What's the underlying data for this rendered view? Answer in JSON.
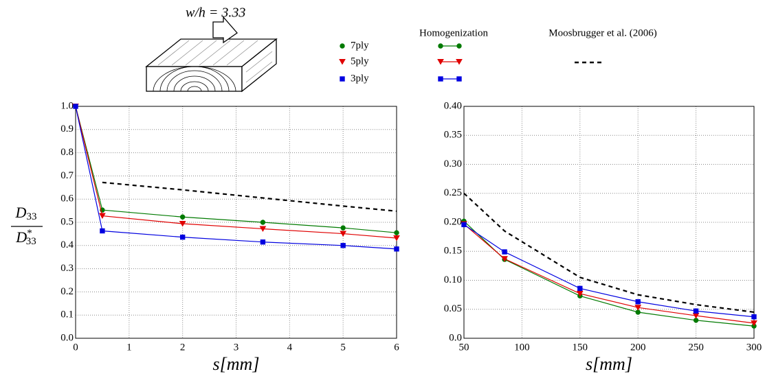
{
  "aspect_label": "w/h = 3.33",
  "legend_title": "Homogenization",
  "chart_data": [
    {
      "type": "line",
      "xlabel": "s[mm]",
      "ylabel": {
        "numerator": "D",
        "numerator_sub": "33",
        "denominator": "D",
        "denominator_sub": "33",
        "denominator_sup": "*"
      },
      "x": [
        0,
        0.5,
        2,
        3.5,
        5,
        6
      ],
      "xlim": [
        0,
        6
      ],
      "xticks": [
        0,
        1,
        2,
        3,
        4,
        5,
        6
      ],
      "ylim": [
        0,
        1
      ],
      "yticks": [
        {
          "value": 0,
          "label": "0.0"
        },
        0.1,
        0.2,
        0.3,
        0.4,
        0.5,
        0.6,
        0.7,
        0.8,
        0.9,
        {
          "value": 1,
          "label": "1.0"
        }
      ],
      "grid": true,
      "series": [
        {
          "name": "7ply",
          "color": "#007a00",
          "marker": "circle",
          "values": [
            1.0,
            0.553,
            0.523,
            0.5,
            0.476,
            0.455
          ]
        },
        {
          "name": "5ply",
          "color": "#e00000",
          "marker": "triangle",
          "values": [
            1.0,
            0.528,
            0.494,
            0.472,
            0.451,
            0.432
          ]
        },
        {
          "name": "3ply",
          "color": "#0000e0",
          "marker": "square",
          "values": [
            1.0,
            0.463,
            0.436,
            0.415,
            0.4,
            0.385
          ]
        },
        {
          "name": "Moosbrugger et al. (2006)",
          "color": "#000000",
          "dashed": true,
          "values": [
            null,
            0.672,
            0.64,
            0.605,
            0.57,
            0.548
          ]
        }
      ]
    },
    {
      "type": "line",
      "xlabel": "s[mm]",
      "x": [
        50,
        85,
        150,
        200,
        250,
        300
      ],
      "xlim": [
        50,
        300
      ],
      "xticks": [
        50,
        100,
        150,
        200,
        250,
        300
      ],
      "ylim": [
        0,
        0.4
      ],
      "yticks": [
        {
          "value": 0,
          "label": "0.0"
        },
        0.05,
        {
          "value": 0.1,
          "label": "0.10"
        },
        0.15,
        {
          "value": 0.2,
          "label": "0.20"
        },
        0.25,
        {
          "value": 0.3,
          "label": "0.30"
        },
        0.35,
        {
          "value": 0.4,
          "label": "0.40"
        }
      ],
      "grid": true,
      "series": [
        {
          "color": "#007a00",
          "marker": "circle",
          "values": [
            0.202,
            0.136,
            0.073,
            0.045,
            0.031,
            0.021
          ]
        },
        {
          "color": "#e00000",
          "marker": "triangle",
          "values": [
            0.197,
            0.137,
            0.077,
            0.053,
            0.039,
            0.026
          ]
        },
        {
          "color": "#0000e0",
          "marker": "square",
          "values": [
            0.196,
            0.149,
            0.086,
            0.063,
            0.047,
            0.037
          ]
        },
        {
          "color": "#000000",
          "dashed": true,
          "values": [
            0.25,
            0.185,
            0.105,
            0.075,
            0.058,
            0.045
          ]
        }
      ]
    }
  ]
}
